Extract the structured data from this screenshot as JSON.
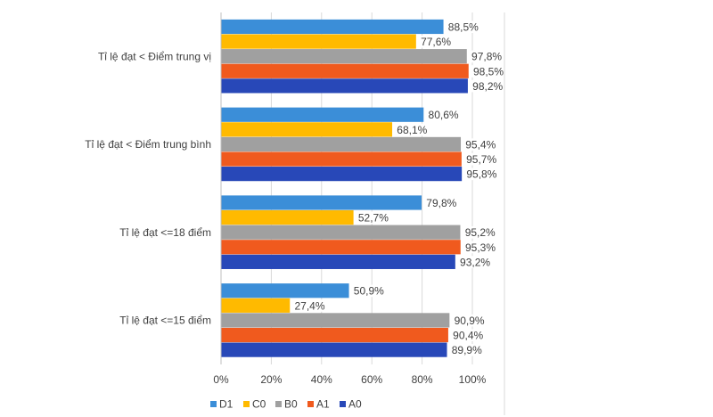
{
  "chart_data": {
    "type": "bar",
    "orientation": "horizontal",
    "title": "",
    "xlabel": "",
    "ylabel": "",
    "xlim": [
      0,
      100
    ],
    "x_ticks": [
      "0%",
      "20%",
      "40%",
      "60%",
      "80%",
      "100%"
    ],
    "x_tick_values": [
      0,
      20,
      40,
      60,
      80,
      100
    ],
    "grid": true,
    "legend_position": "bottom",
    "categories": [
      "Tỉ lệ đạt < Điểm trung vị",
      "Tỉ lệ đạt < Điểm trung bình",
      "Tỉ lệ đạt <=18 điểm",
      "Tỉ lệ đạt <=15 điểm"
    ],
    "series": [
      {
        "name": "D1",
        "color": "#3b8ed8",
        "values": [
          88.5,
          80.6,
          79.8,
          50.9
        ],
        "labels": [
          "88,5%",
          "80,6%",
          "79,8%",
          "50,9%"
        ]
      },
      {
        "name": "C0",
        "color": "#ffba00",
        "values": [
          77.6,
          68.1,
          52.7,
          27.4
        ],
        "labels": [
          "77,6%",
          "68,1%",
          "52,7%",
          "27,4%"
        ]
      },
      {
        "name": "B0",
        "color": "#a0a0a0",
        "values": [
          97.8,
          95.4,
          95.2,
          90.9
        ],
        "labels": [
          "97,8%",
          "95,4%",
          "95,2%",
          "90,9%"
        ]
      },
      {
        "name": "A1",
        "color": "#f05a1e",
        "values": [
          98.5,
          95.7,
          95.3,
          90.4
        ],
        "labels": [
          "98,5%",
          "95,7%",
          "95,3%",
          "90,4%"
        ]
      },
      {
        "name": "A0",
        "color": "#2848b8",
        "values": [
          98.2,
          95.8,
          93.2,
          89.9
        ],
        "labels": [
          "98,2%",
          "95,8%",
          "93,2%",
          "89,9%"
        ]
      }
    ]
  }
}
